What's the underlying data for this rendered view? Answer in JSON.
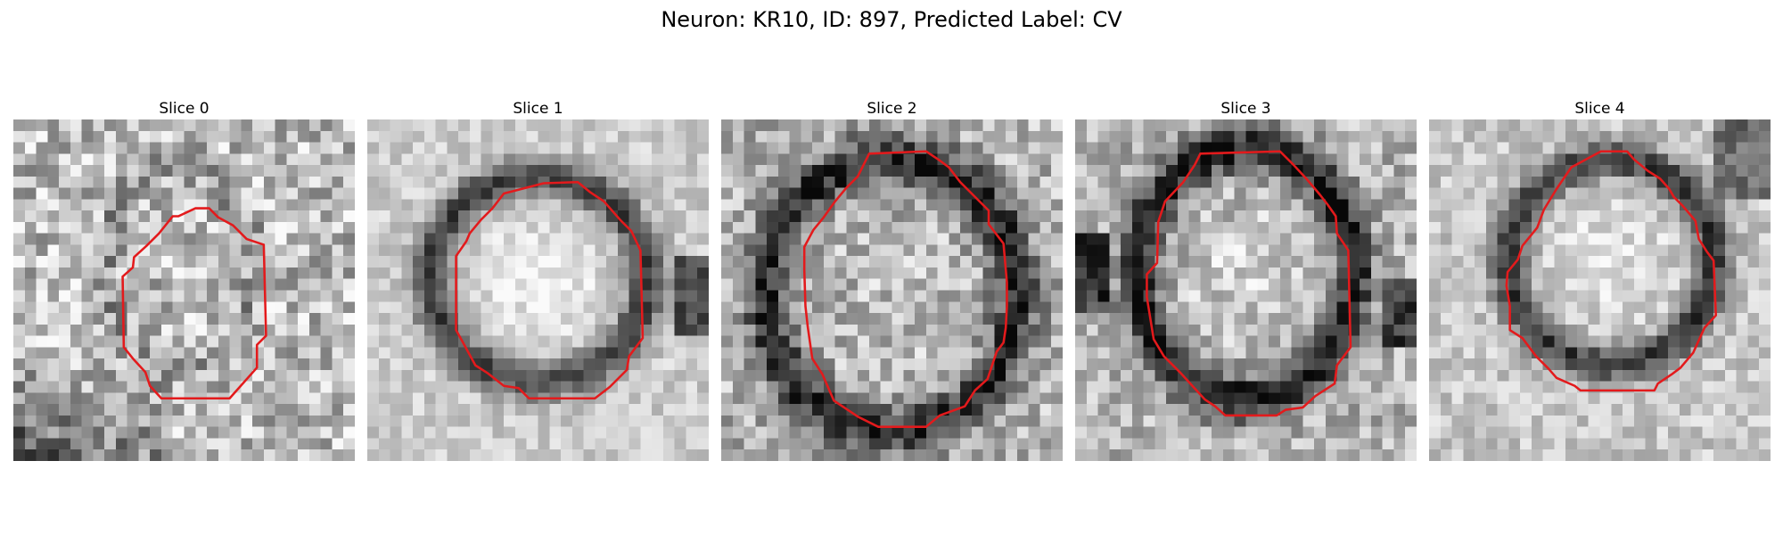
{
  "figure": {
    "title": "Neuron: KR10, ID: 897, Predicted Label: CV",
    "outline_color": "#e31a1c"
  },
  "panels": [
    {
      "label": "Slice 0"
    },
    {
      "label": "Slice 1"
    },
    {
      "label": "Slice 2"
    },
    {
      "label": "Slice 3"
    },
    {
      "label": "Slice 4"
    }
  ]
}
